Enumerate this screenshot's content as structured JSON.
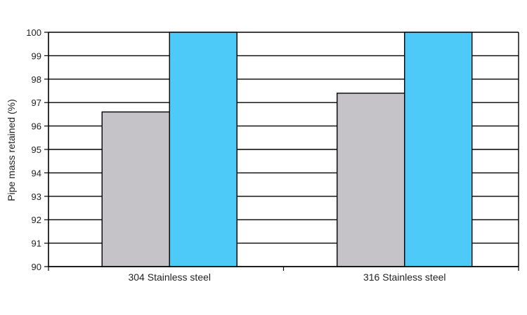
{
  "chart_data": {
    "type": "bar",
    "title": "",
    "xlabel": "",
    "ylabel": "Pipe mass retained (%)",
    "ylim": [
      90,
      100
    ],
    "yticks": [
      90,
      91,
      92,
      93,
      94,
      95,
      96,
      97,
      98,
      99,
      100
    ],
    "categories": [
      "304 Stainless steel",
      "316 Stainless steel"
    ],
    "series": [
      {
        "values": [
          96.6,
          97.4
        ],
        "color": "#c6c3c8"
      },
      {
        "values": [
          100,
          100
        ],
        "color": "#4dcaf7"
      }
    ],
    "grid": true,
    "legend": "none"
  }
}
